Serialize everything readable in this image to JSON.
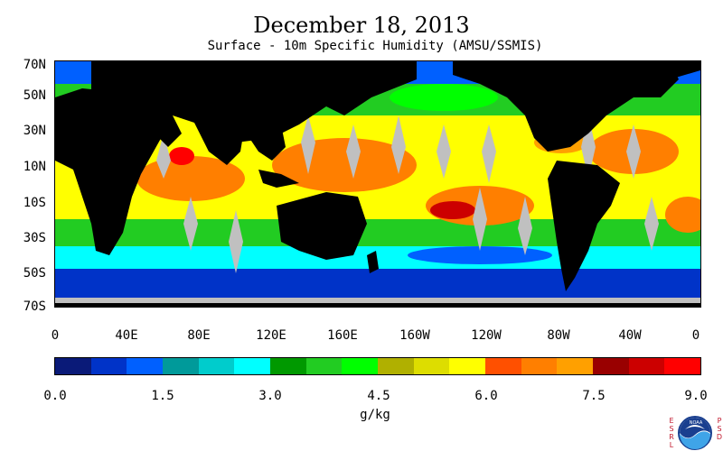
{
  "header": {
    "title": "December 18, 2013",
    "subtitle": "Surface - 10m Specific Humidity (AMSU/SSMIS)"
  },
  "map": {
    "latitude_labels": [
      "70N",
      "50N",
      "30N",
      "10N",
      "10S",
      "30S",
      "50S",
      "70S"
    ],
    "longitude_labels": [
      "0",
      "40E",
      "80E",
      "120E",
      "160E",
      "160W",
      "120W",
      "80W",
      "40W",
      "0"
    ],
    "colors": {
      "land": "#000000",
      "missing": "#c0c0c0"
    }
  },
  "colorbar": {
    "colors": [
      "#0a1a78",
      "#0033c8",
      "#0060ff",
      "#009a9a",
      "#00cccc",
      "#00ffff",
      "#009900",
      "#22cc22",
      "#00ff00",
      "#b0b000",
      "#dddd00",
      "#ffff00",
      "#ff5000",
      "#ff7f00",
      "#ffa000",
      "#990000",
      "#cc0000",
      "#ff0000"
    ],
    "tick_labels": [
      "0.0",
      "1.5",
      "3.0",
      "4.5",
      "6.0",
      "7.5",
      "9.0"
    ],
    "units": "g/kg"
  },
  "logo": {
    "left_text": "ESRL",
    "right_text": "PSD",
    "name": "NOAA"
  }
}
